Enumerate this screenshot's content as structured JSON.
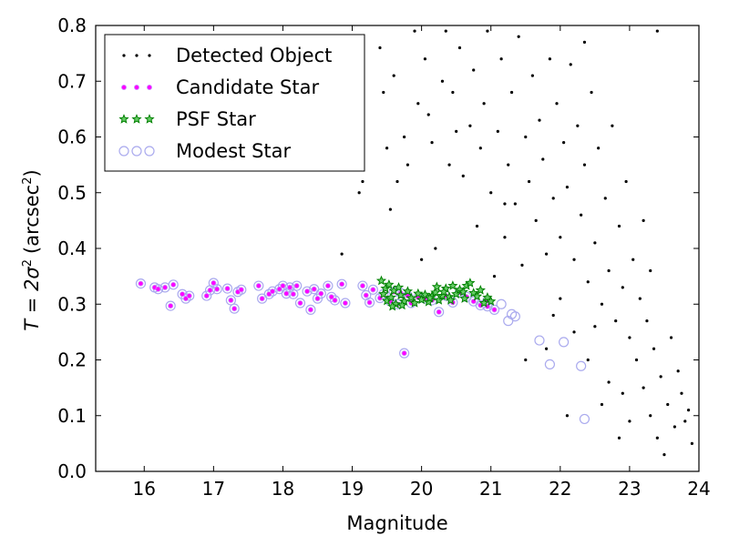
{
  "chart_data": {
    "type": "scatter",
    "xlabel": "Magnitude",
    "ylabel_main": "T = 2σ",
    "ylabel_sup": "2",
    "ylabel_units": "(arcsec",
    "ylabel_units_sup": "2",
    "ylabel_close": ")",
    "xlim": [
      15.3,
      24.0
    ],
    "ylim": [
      0.0,
      0.8
    ],
    "x_ticks": [
      16,
      17,
      18,
      19,
      20,
      21,
      22,
      23,
      24
    ],
    "y_ticks": [
      0.0,
      0.1,
      0.2,
      0.3,
      0.4,
      0.5,
      0.6,
      0.7,
      0.8
    ],
    "legend": {
      "placement": "top-left",
      "entries": [
        {
          "label": "Detected Object",
          "marker": "dot",
          "color": "#000000"
        },
        {
          "label": "Candidate Star",
          "marker": "small-circle",
          "color": "#ff00ff"
        },
        {
          "label": "PSF Star",
          "marker": "star",
          "color": "#008000"
        },
        {
          "label": "Modest Star",
          "marker": "open-circle",
          "color": "#aaaaee"
        }
      ]
    },
    "colors": {
      "detected": "#000000",
      "candidate": "#ff00ff",
      "psf": "#008000",
      "modest": "#aaaaee"
    },
    "series": [
      {
        "name": "Detected Object",
        "points": [
          [
            18.85,
            0.39
          ],
          [
            19.1,
            0.5
          ],
          [
            19.15,
            0.52
          ],
          [
            19.4,
            0.76
          ],
          [
            19.45,
            0.68
          ],
          [
            19.5,
            0.58
          ],
          [
            19.55,
            0.47
          ],
          [
            19.6,
            0.71
          ],
          [
            19.65,
            0.52
          ],
          [
            19.75,
            0.6
          ],
          [
            19.8,
            0.55
          ],
          [
            19.9,
            0.79
          ],
          [
            19.95,
            0.66
          ],
          [
            20.0,
            0.38
          ],
          [
            20.05,
            0.74
          ],
          [
            20.1,
            0.64
          ],
          [
            20.15,
            0.59
          ],
          [
            20.2,
            0.4
          ],
          [
            20.3,
            0.7
          ],
          [
            20.35,
            0.79
          ],
          [
            20.4,
            0.55
          ],
          [
            20.45,
            0.68
          ],
          [
            20.5,
            0.61
          ],
          [
            20.55,
            0.76
          ],
          [
            20.6,
            0.53
          ],
          [
            20.7,
            0.62
          ],
          [
            20.75,
            0.72
          ],
          [
            20.8,
            0.44
          ],
          [
            20.85,
            0.58
          ],
          [
            20.9,
            0.66
          ],
          [
            20.95,
            0.79
          ],
          [
            21.0,
            0.5
          ],
          [
            21.05,
            0.35
          ],
          [
            21.1,
            0.61
          ],
          [
            21.15,
            0.74
          ],
          [
            21.2,
            0.42
          ],
          [
            21.25,
            0.55
          ],
          [
            21.3,
            0.68
          ],
          [
            21.35,
            0.48
          ],
          [
            21.4,
            0.78
          ],
          [
            21.45,
            0.37
          ],
          [
            21.5,
            0.6
          ],
          [
            21.55,
            0.52
          ],
          [
            21.6,
            0.71
          ],
          [
            21.65,
            0.45
          ],
          [
            21.7,
            0.63
          ],
          [
            21.75,
            0.56
          ],
          [
            21.8,
            0.39
          ],
          [
            21.85,
            0.74
          ],
          [
            21.9,
            0.49
          ],
          [
            21.95,
            0.66
          ],
          [
            22.0,
            0.42
          ],
          [
            22.05,
            0.59
          ],
          [
            22.1,
            0.51
          ],
          [
            22.15,
            0.73
          ],
          [
            22.2,
            0.38
          ],
          [
            22.25,
            0.62
          ],
          [
            22.3,
            0.46
          ],
          [
            22.35,
            0.55
          ],
          [
            22.4,
            0.34
          ],
          [
            22.45,
            0.68
          ],
          [
            22.5,
            0.41
          ],
          [
            22.55,
            0.58
          ],
          [
            22.6,
            0.3
          ],
          [
            22.65,
            0.49
          ],
          [
            22.7,
            0.36
          ],
          [
            22.75,
            0.62
          ],
          [
            22.8,
            0.27
          ],
          [
            22.85,
            0.44
          ],
          [
            22.9,
            0.33
          ],
          [
            22.95,
            0.52
          ],
          [
            23.0,
            0.24
          ],
          [
            23.05,
            0.38
          ],
          [
            23.1,
            0.2
          ],
          [
            23.15,
            0.31
          ],
          [
            23.2,
            0.15
          ],
          [
            23.25,
            0.27
          ],
          [
            23.3,
            0.1
          ],
          [
            23.35,
            0.22
          ],
          [
            23.4,
            0.06
          ],
          [
            23.45,
            0.17
          ],
          [
            23.5,
            0.03
          ],
          [
            23.55,
            0.12
          ],
          [
            23.6,
            0.24
          ],
          [
            23.65,
            0.08
          ],
          [
            23.7,
            0.18
          ],
          [
            23.75,
            0.14
          ],
          [
            23.8,
            0.09
          ],
          [
            23.85,
            0.11
          ],
          [
            23.9,
            0.05
          ],
          [
            21.5,
            0.2
          ],
          [
            21.2,
            0.48
          ],
          [
            22.1,
            0.1
          ],
          [
            22.6,
            0.12
          ],
          [
            22.85,
            0.06
          ],
          [
            23.0,
            0.09
          ],
          [
            23.2,
            0.45
          ],
          [
            23.4,
            0.79
          ],
          [
            22.35,
            0.77
          ],
          [
            21.9,
            0.28
          ],
          [
            22.0,
            0.31
          ],
          [
            22.2,
            0.25
          ],
          [
            22.4,
            0.2
          ],
          [
            22.7,
            0.16
          ],
          [
            22.9,
            0.14
          ],
          [
            21.8,
            0.22
          ],
          [
            22.5,
            0.26
          ],
          [
            23.3,
            0.36
          ]
        ]
      },
      {
        "name": "Candidate Star",
        "points": [
          [
            15.95,
            0.337
          ],
          [
            16.15,
            0.33
          ],
          [
            16.2,
            0.327
          ],
          [
            16.3,
            0.33
          ],
          [
            16.38,
            0.297
          ],
          [
            16.42,
            0.335
          ],
          [
            16.55,
            0.318
          ],
          [
            16.6,
            0.31
          ],
          [
            16.65,
            0.315
          ],
          [
            16.9,
            0.315
          ],
          [
            16.95,
            0.325
          ],
          [
            17.0,
            0.338
          ],
          [
            17.05,
            0.327
          ],
          [
            17.2,
            0.328
          ],
          [
            17.25,
            0.307
          ],
          [
            17.3,
            0.292
          ],
          [
            17.35,
            0.322
          ],
          [
            17.4,
            0.326
          ],
          [
            17.65,
            0.333
          ],
          [
            17.7,
            0.31
          ],
          [
            17.8,
            0.318
          ],
          [
            17.85,
            0.323
          ],
          [
            17.95,
            0.327
          ],
          [
            18.0,
            0.333
          ],
          [
            18.05,
            0.319
          ],
          [
            18.1,
            0.33
          ],
          [
            18.15,
            0.318
          ],
          [
            18.2,
            0.333
          ],
          [
            18.25,
            0.302
          ],
          [
            18.35,
            0.323
          ],
          [
            18.4,
            0.29
          ],
          [
            18.45,
            0.327
          ],
          [
            18.5,
            0.31
          ],
          [
            18.55,
            0.319
          ],
          [
            18.65,
            0.333
          ],
          [
            18.7,
            0.313
          ],
          [
            18.75,
            0.307
          ],
          [
            18.85,
            0.336
          ],
          [
            18.9,
            0.302
          ],
          [
            19.15,
            0.333
          ],
          [
            19.2,
            0.316
          ],
          [
            19.25,
            0.303
          ],
          [
            19.3,
            0.326
          ],
          [
            19.4,
            0.311
          ],
          [
            19.45,
            0.318
          ],
          [
            19.55,
            0.305
          ],
          [
            19.6,
            0.322
          ],
          [
            19.65,
            0.3
          ],
          [
            19.7,
            0.32
          ],
          [
            19.75,
            0.212
          ],
          [
            19.8,
            0.315
          ],
          [
            19.85,
            0.302
          ],
          [
            19.95,
            0.312
          ],
          [
            20.05,
            0.31
          ],
          [
            20.15,
            0.307
          ],
          [
            20.25,
            0.286
          ],
          [
            20.35,
            0.315
          ],
          [
            20.45,
            0.303
          ],
          [
            20.55,
            0.321
          ],
          [
            20.65,
            0.313
          ],
          [
            20.75,
            0.305
          ],
          [
            20.85,
            0.298
          ],
          [
            20.95,
            0.306
          ],
          [
            21.05,
            0.29
          ],
          [
            20.95,
            0.296
          ]
        ]
      },
      {
        "name": "PSF Star",
        "points": [
          [
            19.42,
            0.342
          ],
          [
            19.45,
            0.318
          ],
          [
            19.48,
            0.328
          ],
          [
            19.5,
            0.306
          ],
          [
            19.53,
            0.335
          ],
          [
            19.56,
            0.312
          ],
          [
            19.6,
            0.324
          ],
          [
            19.63,
            0.3
          ],
          [
            19.67,
            0.33
          ],
          [
            19.7,
            0.316
          ],
          [
            19.75,
            0.305
          ],
          [
            19.8,
            0.323
          ],
          [
            19.85,
            0.311
          ],
          [
            19.9,
            0.302
          ],
          [
            19.95,
            0.319
          ],
          [
            20.0,
            0.308
          ],
          [
            20.05,
            0.317
          ],
          [
            20.1,
            0.304
          ],
          [
            20.15,
            0.314
          ],
          [
            20.2,
            0.321
          ],
          [
            20.25,
            0.307
          ],
          [
            20.3,
            0.315
          ],
          [
            20.35,
            0.328
          ],
          [
            20.4,
            0.313
          ],
          [
            20.45,
            0.333
          ],
          [
            20.5,
            0.318
          ],
          [
            20.55,
            0.326
          ],
          [
            20.6,
            0.322
          ],
          [
            20.65,
            0.333
          ],
          [
            20.7,
            0.338
          ],
          [
            20.75,
            0.32
          ],
          [
            20.8,
            0.314
          ],
          [
            20.85,
            0.325
          ],
          [
            20.9,
            0.302
          ],
          [
            20.95,
            0.312
          ],
          [
            21.0,
            0.305
          ],
          [
            20.42,
            0.307
          ],
          [
            20.32,
            0.322
          ],
          [
            20.12,
            0.311
          ],
          [
            19.58,
            0.296
          ],
          [
            19.72,
            0.298
          ],
          [
            20.22,
            0.331
          ],
          [
            20.62,
            0.31
          ]
        ]
      },
      {
        "name": "Modest Star",
        "points": [
          [
            15.95,
            0.337
          ],
          [
            16.15,
            0.33
          ],
          [
            16.2,
            0.327
          ],
          [
            16.3,
            0.33
          ],
          [
            16.38,
            0.297
          ],
          [
            16.42,
            0.335
          ],
          [
            16.55,
            0.318
          ],
          [
            16.6,
            0.31
          ],
          [
            16.65,
            0.315
          ],
          [
            16.9,
            0.315
          ],
          [
            16.95,
            0.325
          ],
          [
            17.0,
            0.338
          ],
          [
            17.05,
            0.327
          ],
          [
            17.2,
            0.328
          ],
          [
            17.25,
            0.307
          ],
          [
            17.3,
            0.292
          ],
          [
            17.35,
            0.322
          ],
          [
            17.4,
            0.326
          ],
          [
            17.65,
            0.333
          ],
          [
            17.7,
            0.31
          ],
          [
            17.8,
            0.318
          ],
          [
            17.85,
            0.323
          ],
          [
            17.95,
            0.327
          ],
          [
            18.0,
            0.333
          ],
          [
            18.05,
            0.319
          ],
          [
            18.1,
            0.33
          ],
          [
            18.15,
            0.318
          ],
          [
            18.2,
            0.333
          ],
          [
            18.25,
            0.302
          ],
          [
            18.35,
            0.323
          ],
          [
            18.4,
            0.29
          ],
          [
            18.45,
            0.327
          ],
          [
            18.5,
            0.31
          ],
          [
            18.55,
            0.319
          ],
          [
            18.65,
            0.333
          ],
          [
            18.7,
            0.313
          ],
          [
            18.75,
            0.307
          ],
          [
            18.85,
            0.336
          ],
          [
            18.9,
            0.302
          ],
          [
            19.15,
            0.333
          ],
          [
            19.2,
            0.316
          ],
          [
            19.25,
            0.303
          ],
          [
            19.3,
            0.326
          ],
          [
            19.4,
            0.311
          ],
          [
            19.45,
            0.318
          ],
          [
            19.55,
            0.305
          ],
          [
            19.6,
            0.322
          ],
          [
            19.65,
            0.3
          ],
          [
            19.7,
            0.32
          ],
          [
            19.75,
            0.212
          ],
          [
            19.8,
            0.315
          ],
          [
            19.85,
            0.302
          ],
          [
            19.95,
            0.312
          ],
          [
            20.05,
            0.31
          ],
          [
            20.15,
            0.307
          ],
          [
            20.25,
            0.286
          ],
          [
            20.35,
            0.315
          ],
          [
            20.45,
            0.303
          ],
          [
            20.55,
            0.321
          ],
          [
            20.65,
            0.313
          ],
          [
            20.75,
            0.305
          ],
          [
            20.85,
            0.298
          ],
          [
            20.95,
            0.306
          ],
          [
            21.05,
            0.29
          ],
          [
            20.95,
            0.296
          ],
          [
            21.25,
            0.27
          ],
          [
            21.35,
            0.278
          ],
          [
            21.3,
            0.282
          ],
          [
            21.7,
            0.235
          ],
          [
            21.85,
            0.192
          ],
          [
            22.05,
            0.232
          ],
          [
            22.3,
            0.189
          ],
          [
            22.35,
            0.094
          ],
          [
            21.15,
            0.3
          ]
        ]
      }
    ]
  }
}
